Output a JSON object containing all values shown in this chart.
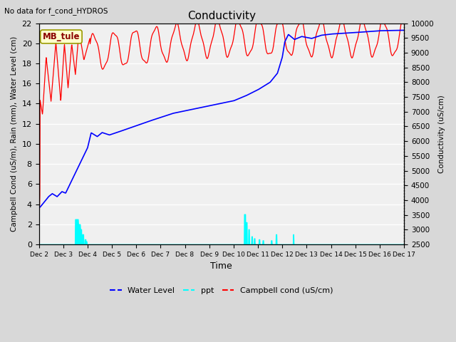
{
  "title": "Conductivity",
  "top_left_text": "No data for f_cond_HYDROS",
  "ylabel_left": "Campbell Cond (uS/m), Rain (mm), Water Level (cm)",
  "ylabel_right": "Conductivity (uS/cm)",
  "xlabel": "Time",
  "ylim_left": [
    0,
    22
  ],
  "ylim_right": [
    2500,
    10000
  ],
  "yticks_left": [
    0,
    2,
    4,
    6,
    8,
    10,
    12,
    14,
    16,
    18,
    20,
    22
  ],
  "yticks_right": [
    2500,
    3000,
    3500,
    4000,
    4500,
    5000,
    5500,
    6000,
    6500,
    7000,
    7500,
    8000,
    8500,
    9000,
    9500,
    10000
  ],
  "bg_color": "#d8d8d8",
  "plot_bg_color": "#f0f0f0",
  "grid_color": "white",
  "legend_entries": [
    "Water Level",
    "ppt",
    "Campbell cond (uS/cm)"
  ],
  "legend_colors": [
    "blue",
    "cyan",
    "red"
  ],
  "mb_tule_box_color": "#ffffcc",
  "mb_tule_text_color": "#8b0000",
  "xtick_labels": [
    "Dec 2",
    "Dec 3",
    "Dec 4",
    "Dec 5",
    "Dec 6",
    "Dec 7",
    "Dec 8",
    "Dec 9",
    "Dec 10",
    "Dec 11",
    "Dec 12",
    "Dec 13",
    "Dec 14",
    "Dec 15",
    "Dec 16",
    "Dec 17"
  ]
}
